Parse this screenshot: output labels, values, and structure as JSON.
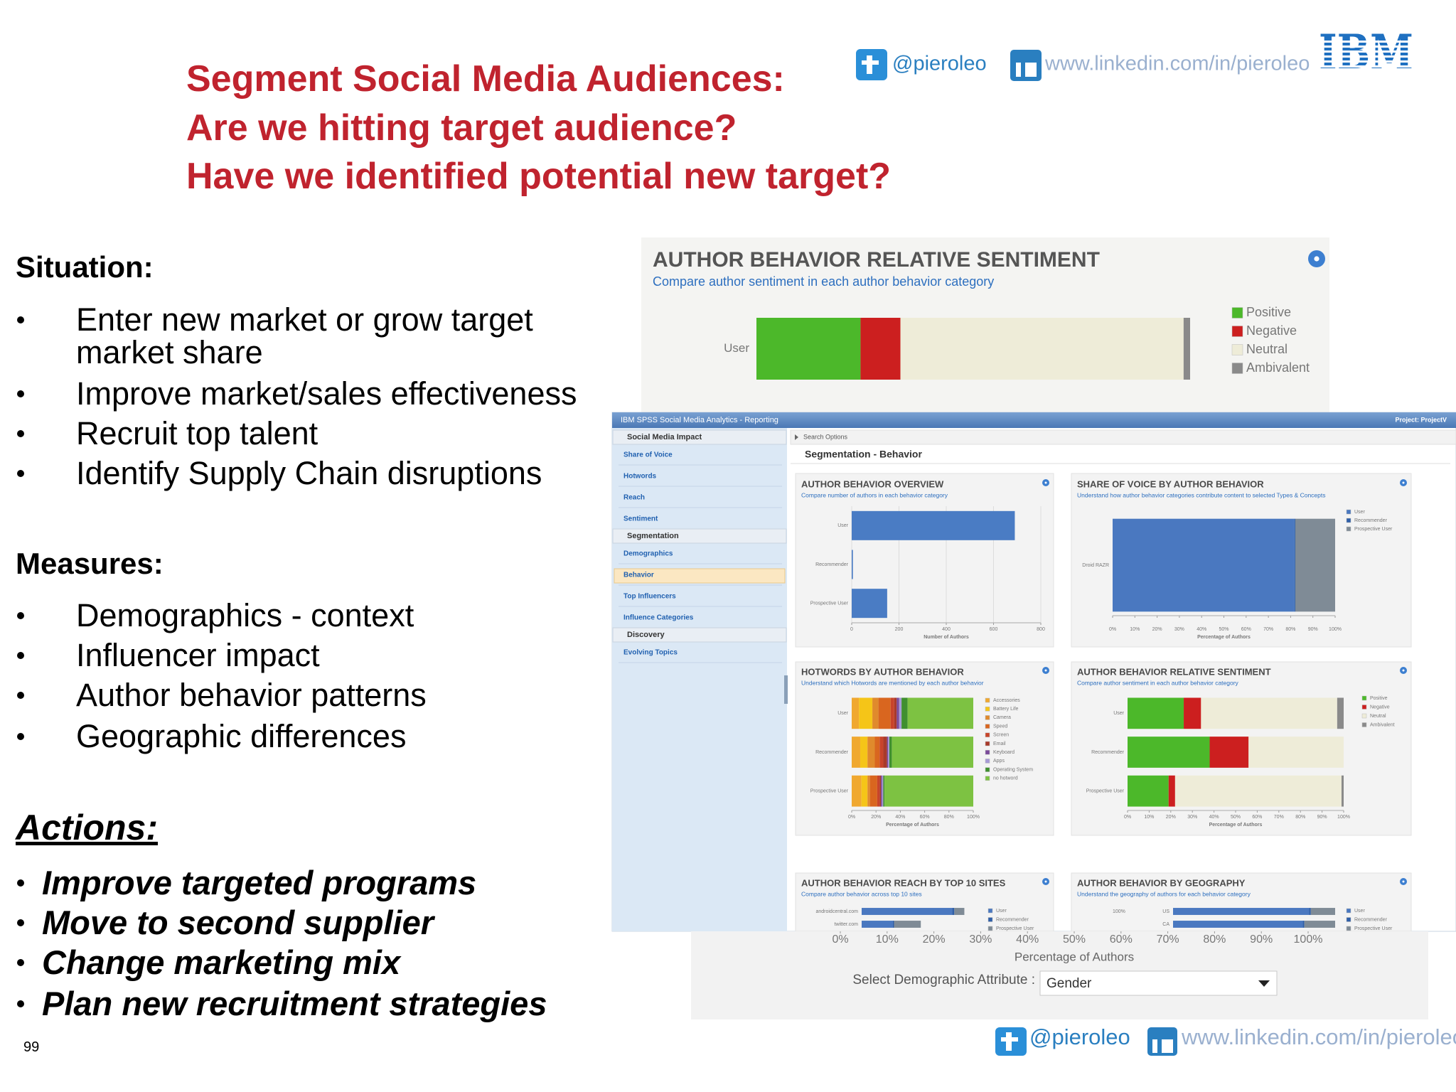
{
  "header": {
    "title_lines": [
      "Segment Social Media Audiences:",
      "Are we hitting target audience?",
      "Have we identified potential new target?"
    ],
    "twitter": "@pieroleo",
    "linkedin": "www.linkedin.com/in/pieroleo",
    "logo": "IBM"
  },
  "situation": {
    "heading": "Situation:",
    "items": [
      "Enter new market or grow target market share",
      "Improve market/sales effectiveness",
      "Recruit top talent",
      "Identify Supply Chain disruptions"
    ]
  },
  "measures": {
    "heading": "Measures:",
    "items": [
      "Demographics - context",
      "Influencer impact",
      "Author behavior patterns",
      "Geographic differences"
    ]
  },
  "actions": {
    "heading": "Actions:",
    "items": [
      "Improve targeted programs",
      "Move to second supplier",
      "Change marketing mix",
      "Plan new recruitment strategies"
    ]
  },
  "page_number": 99,
  "zoom_top": {
    "title": "AUTHOR BEHAVIOR RELATIVE SENTIMENT",
    "subtitle": "Compare author sentiment in each author behavior category",
    "categories": [
      "User"
    ],
    "xlim": [
      0,
      100
    ],
    "series": [
      {
        "name": "Positive",
        "color": "#4cb82a",
        "values": [
          24
        ]
      },
      {
        "name": "Negative",
        "color": "#cc1f1f",
        "values": [
          9.2
        ]
      },
      {
        "name": "Neutral",
        "color": "#eeecd8",
        "values": [
          65.3
        ]
      },
      {
        "name": "Ambivalent",
        "color": "#8a8a8a",
        "values": [
          1.5
        ]
      }
    ]
  },
  "dashboard": {
    "app_title": "IBM SPSS Social Media Analytics - Reporting",
    "project": "Project: ProjectV",
    "nav": [
      {
        "heading": "Social Media Impact",
        "items": [
          "Share of Voice",
          "Hotwords",
          "Reach",
          "Sentiment"
        ]
      },
      {
        "heading": "Segmentation",
        "items": [
          "Demographics",
          "Behavior",
          "Top Influencers",
          "Influence Categories"
        ]
      },
      {
        "heading": "Discovery",
        "items": [
          "Evolving Topics"
        ]
      }
    ],
    "search_options": "Search Options",
    "page_title": "Segmentation - Behavior",
    "panels": [
      {
        "title": "AUTHOR BEHAVIOR OVERVIEW",
        "subtitle": "Compare number of authors in each behavior category",
        "categories": [
          "User",
          "Recommender",
          "Prospective User"
        ],
        "values": [
          690,
          5,
          150
        ],
        "color": "#4a7cc4",
        "xlim": [
          0,
          800
        ],
        "xticks": [
          0,
          200,
          400,
          600,
          800
        ],
        "xlabel": "Number of Authors"
      },
      {
        "title": "SHARE OF VOICE BY AUTHOR BEHAVIOR",
        "subtitle": "Understand how author behavior categories contribute content to selected Types & Concepts",
        "categories": [
          "Droid RAZR"
        ],
        "xlim": [
          0,
          100
        ],
        "series": [
          {
            "name": "User",
            "color": "#4a78c0",
            "values": [
              81.7
            ]
          },
          {
            "name": "Recommender",
            "color": "#2f5fa8",
            "values": [
              0.4
            ]
          },
          {
            "name": "Prospective User",
            "color": "#7f8b96",
            "values": [
              17.9
            ]
          }
        ],
        "xticks": [
          {
            "value": 0,
            "label": "0%"
          },
          {
            "value": 10,
            "label": "10%"
          },
          {
            "value": 20,
            "label": "20%"
          },
          {
            "value": 30,
            "label": "30%"
          },
          {
            "value": 40,
            "label": "40%"
          },
          {
            "value": 50,
            "label": "50%"
          },
          {
            "value": 60,
            "label": "60%"
          },
          {
            "value": 70,
            "label": "70%"
          },
          {
            "value": 80,
            "label": "80%"
          },
          {
            "value": 90,
            "label": "90%"
          },
          {
            "value": 100,
            "label": "100%"
          }
        ],
        "xlabel": "Percentage of Authors"
      },
      {
        "title": "HOTWORDS BY AUTHOR BEHAVIOR",
        "subtitle": "Understand which Hotwords are mentioned by each author behavior",
        "categories": [
          "User",
          "Recommender",
          "Prospective User"
        ],
        "xlim": [
          0,
          100
        ],
        "series": [
          {
            "name": "Accessories",
            "color": "#f0a830",
            "values": [
              6,
              7,
              8
            ]
          },
          {
            "name": "Battery Life",
            "color": "#f5c518",
            "values": [
              11,
              6,
              5
            ]
          },
          {
            "name": "Camera",
            "color": "#e08a2c",
            "values": [
              5,
              6,
              2
            ]
          },
          {
            "name": "Speed",
            "color": "#d9661f",
            "values": [
              10,
              4,
              6
            ]
          },
          {
            "name": "Screen",
            "color": "#c8442a",
            "values": [
              3,
              3,
              2
            ]
          },
          {
            "name": "Email",
            "color": "#a83a2a",
            "values": [
              2,
              3,
              1
            ]
          },
          {
            "name": "Keyboard",
            "color": "#7a4a9a",
            "values": [
              2,
              1,
              1
            ]
          },
          {
            "name": "Apps",
            "color": "#a79ad6",
            "values": [
              2,
              1,
              1
            ]
          },
          {
            "name": "Operating System",
            "color": "#3f8f2f",
            "values": [
              5,
              2,
              1
            ]
          },
          {
            "name": "no hotword",
            "color": "#7dc242",
            "values": [
              54,
              67,
              73
            ]
          }
        ],
        "xticks": [
          {
            "value": 0,
            "label": "0%"
          },
          {
            "value": 20,
            "label": "20%"
          },
          {
            "value": 40,
            "label": "40%"
          },
          {
            "value": 60,
            "label": "60%"
          },
          {
            "value": 80,
            "label": "80%"
          },
          {
            "value": 100,
            "label": "100%"
          }
        ],
        "xlabel": "Percentage of Authors"
      },
      {
        "title": "AUTHOR BEHAVIOR RELATIVE SENTIMENT",
        "subtitle": "Compare author sentiment in each author behavior category",
        "categories": [
          "User",
          "Recommender",
          "Prospective User"
        ],
        "xlim": [
          0,
          100
        ],
        "series": [
          {
            "name": "Positive",
            "color": "#4cb82a",
            "values": [
              26,
              38,
              19
            ]
          },
          {
            "name": "Negative",
            "color": "#cc1f1f",
            "values": [
              8,
              18,
              3
            ]
          },
          {
            "name": "Neutral",
            "color": "#eeecd8",
            "values": [
              63,
              44,
              77
            ]
          },
          {
            "name": "Ambivalent",
            "color": "#8a8a8a",
            "values": [
              3,
              0,
              1
            ]
          }
        ],
        "xticks": [
          {
            "value": 0,
            "label": "0%"
          },
          {
            "value": 10,
            "label": "10%"
          },
          {
            "value": 20,
            "label": "20%"
          },
          {
            "value": 30,
            "label": "30%"
          },
          {
            "value": 40,
            "label": "40%"
          },
          {
            "value": 50,
            "label": "50%"
          },
          {
            "value": 60,
            "label": "60%"
          },
          {
            "value": 70,
            "label": "70%"
          },
          {
            "value": 80,
            "label": "80%"
          },
          {
            "value": 90,
            "label": "90%"
          },
          {
            "value": 100,
            "label": "100%"
          }
        ],
        "xlabel": "Percentage of Authors"
      },
      {
        "title": "AUTHOR BEHAVIOR REACH BY TOP 10 SITES",
        "subtitle": "Compare author behavior across top 10 sites",
        "categories": [
          "androidcentral.com",
          "twitter.com"
        ],
        "xlim": [
          0,
          100
        ],
        "series": [
          {
            "name": "User",
            "color": "#4a78c0",
            "values": [
              81,
              28
            ]
          },
          {
            "name": "Recommender",
            "color": "#2f5fa8",
            "values": [
              2,
              1
            ]
          },
          {
            "name": "Prospective User",
            "color": "#7f8b96",
            "values": [
              9,
              24
            ]
          }
        ]
      },
      {
        "title": "AUTHOR BEHAVIOR BY GEOGRAPHY",
        "subtitle": "Understand the geography of authors for each behavior category",
        "categories": [
          "US",
          "CA"
        ],
        "xlim": [
          0,
          100
        ],
        "map_label": "100%",
        "series": [
          {
            "name": "User",
            "color": "#4a78c0",
            "values": [
              84,
              80
            ]
          },
          {
            "name": "Recommender",
            "color": "#2f5fa8",
            "values": [
              1,
              1
            ]
          },
          {
            "name": "Prospective User",
            "color": "#7f8b96",
            "values": [
              15,
              19
            ]
          }
        ]
      }
    ]
  },
  "zoom_bottom": {
    "xlim": [
      0,
      100
    ],
    "xticks": [
      {
        "value": 0,
        "label": "0%"
      },
      {
        "value": 10,
        "label": "10%"
      },
      {
        "value": 20,
        "label": "20%"
      },
      {
        "value": 30,
        "label": "30%"
      },
      {
        "value": 40,
        "label": "40%"
      },
      {
        "value": 50,
        "label": "50%"
      },
      {
        "value": 60,
        "label": "60%"
      },
      {
        "value": 70,
        "label": "70%"
      },
      {
        "value": 80,
        "label": "80%"
      },
      {
        "value": 90,
        "label": "90%"
      },
      {
        "value": 100,
        "label": "100%"
      }
    ],
    "xlabel": "Percentage of Authors",
    "select_label": "Select Demographic Attribute :",
    "select_value": "Gender"
  },
  "footer": {
    "twitter": "@pieroleo",
    "linkedin": "www.linkedin.com/in/pieroleo"
  }
}
